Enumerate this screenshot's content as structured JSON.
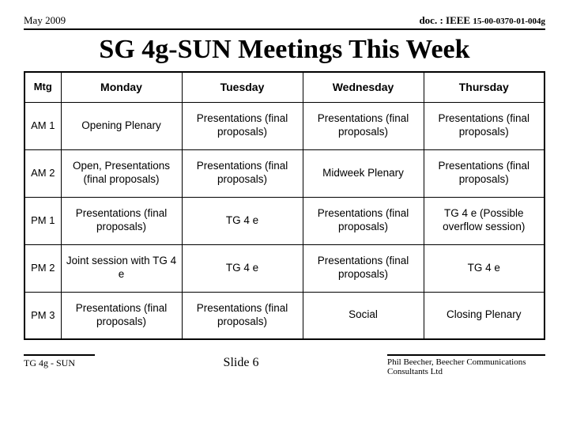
{
  "header": {
    "date": "May 2009",
    "doc_prefix": "doc. : IEEE ",
    "doc_num": "15-00-0370-01-004g"
  },
  "title": "SG 4g-SUN Meetings This Week",
  "table": {
    "headers": [
      "Mtg",
      "Monday",
      "Tuesday",
      "Wednesday",
      "Thursday"
    ],
    "rows": [
      {
        "mtg": "AM 1",
        "cells": [
          "Opening Plenary",
          "Presentations (final proposals)",
          "Presentations (final proposals)",
          "Presentations (final proposals)"
        ]
      },
      {
        "mtg": "AM 2",
        "cells": [
          "Open, Presentations (final proposals)",
          "Presentations (final proposals)",
          "Midweek Plenary",
          "Presentations (final proposals)"
        ]
      },
      {
        "mtg": "PM 1",
        "cells": [
          "Presentations (final proposals)",
          "TG 4 e",
          "Presentations (final proposals)",
          "TG 4 e (Possible overflow session)"
        ]
      },
      {
        "mtg": "PM 2",
        "cells": [
          "Joint session with TG 4 e",
          "TG 4 e",
          "Presentations (final proposals)",
          "TG 4 e"
        ]
      },
      {
        "mtg": "PM 3",
        "cells": [
          "Presentations (final proposals)",
          "Presentations (final proposals)",
          "Social",
          "Closing Plenary"
        ]
      }
    ]
  },
  "footer": {
    "left": "TG 4g - SUN",
    "center": "Slide 6",
    "right": "Phil Beecher, Beecher Communications Consultants Ltd"
  }
}
